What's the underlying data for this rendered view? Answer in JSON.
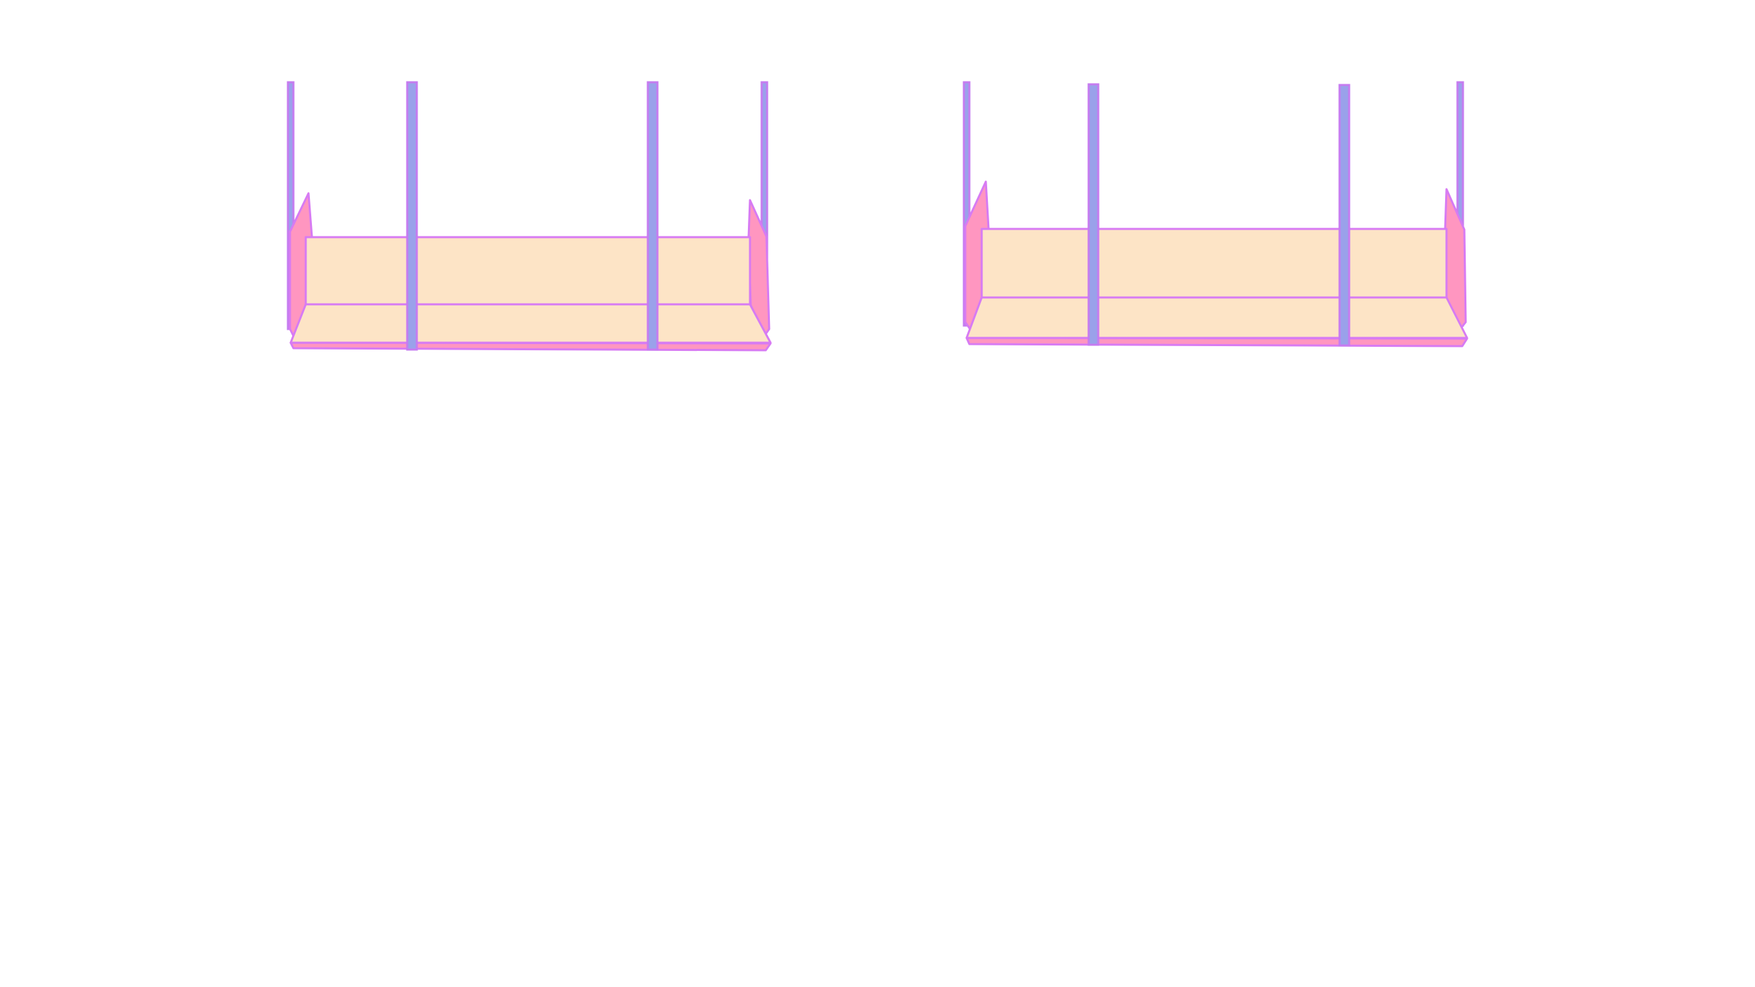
{
  "canvas": {
    "background": "#ffffff"
  },
  "colors": {
    "outline": "#d77bf3",
    "fill_panel": "#fde4c6",
    "fill_side": "#ff96c0",
    "fill_rod": "#9aa1ea",
    "rod_outline": "#c67cf0"
  },
  "objects": [
    {
      "id": "unit-left",
      "description_icon": "bench-frame-icon"
    },
    {
      "id": "unit-right",
      "description_icon": "bench-frame-icon"
    }
  ]
}
